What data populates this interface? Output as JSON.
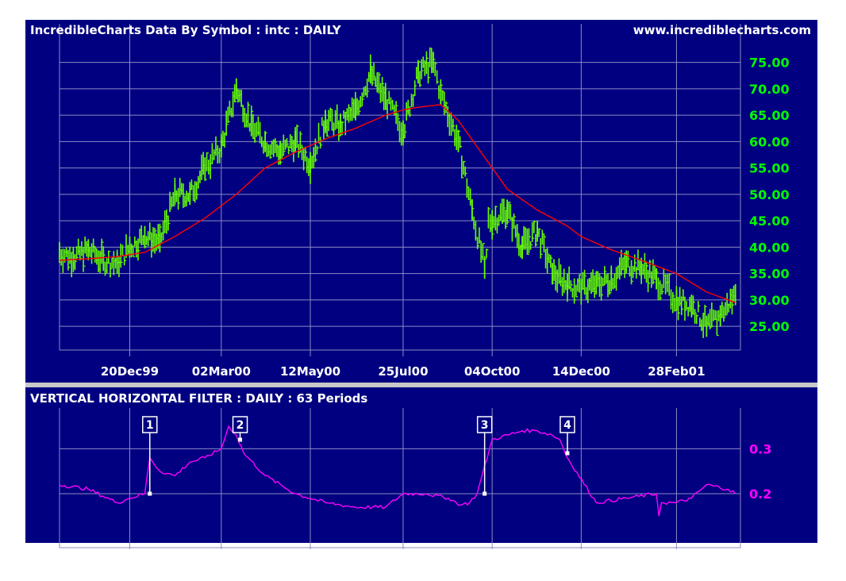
{
  "colors": {
    "background": "#ffffff",
    "panel": "#000080",
    "grid": "#8c8cc6",
    "separator": "#c8c8c8",
    "text": "#ffffff",
    "price_axis": "#00ff00",
    "price_bars": "#66ff00",
    "moving_average": "#ff0000",
    "indicator": "#ff00ff"
  },
  "chart_data": [
    {
      "type": "line",
      "title": "IncredibleCharts Data By Symbol : intc : DAILY",
      "source_label": "www.incrediblecharts.com",
      "x_tick_labels": [
        "20Dec99",
        "02Mar00",
        "12May00",
        "25Jul00",
        "04Oct00",
        "14Dec00",
        "28Feb01"
      ],
      "x_tick_dates": [
        "1999-12-20",
        "2000-03-02",
        "2000-05-12",
        "2000-07-25",
        "2000-10-04",
        "2000-12-14",
        "2001-02-28"
      ],
      "x_range": [
        "1999-10-25",
        "2001-04-20"
      ],
      "y_ticks": [
        25,
        30,
        35,
        40,
        45,
        50,
        55,
        60,
        65,
        70,
        75
      ],
      "y_tick_labels": [
        "25.00",
        "30.00",
        "35.00",
        "40.00",
        "45.00",
        "50.00",
        "55.00",
        "60.00",
        "65.00",
        "70.00",
        "75.00"
      ],
      "ylim": [
        20.5,
        79
      ],
      "grid": true,
      "series": [
        {
          "role": "price-bars",
          "x": [
            "1999-10-25",
            "1999-11-05",
            "1999-11-17",
            "1999-11-29",
            "1999-12-10",
            "1999-12-20",
            "2000-01-01",
            "2000-01-13",
            "2000-01-25",
            "2000-02-06",
            "2000-02-18",
            "2000-03-02",
            "2000-03-14",
            "2000-03-26",
            "2000-04-06",
            "2000-04-18",
            "2000-04-30",
            "2000-05-12",
            "2000-05-24",
            "2000-06-05",
            "2000-06-17",
            "2000-06-29",
            "2000-07-11",
            "2000-07-25",
            "2000-08-06",
            "2000-08-18",
            "2000-08-24",
            "2000-09-07",
            "2000-09-18",
            "2000-09-28",
            "2000-10-04",
            "2000-10-16",
            "2000-10-28",
            "2000-11-09",
            "2000-11-21",
            "2000-12-03",
            "2000-12-14",
            "2000-12-26",
            "2001-01-07",
            "2001-01-19",
            "2001-01-31",
            "2001-02-12",
            "2001-02-28",
            "2001-03-12",
            "2001-03-24",
            "2001-04-04",
            "2001-04-16"
          ],
          "values": [
            39,
            38,
            39.5,
            37.5,
            37,
            40,
            42,
            41,
            50,
            50,
            55,
            59,
            70,
            63,
            60,
            58,
            60,
            56,
            64,
            63,
            66,
            73,
            68,
            62,
            73,
            75,
            69,
            60,
            47,
            36,
            45,
            47,
            40,
            43,
            35,
            33,
            32,
            33,
            34,
            37,
            36,
            34,
            30,
            29,
            25,
            27,
            31
          ]
        },
        {
          "role": "moving-average",
          "x": [
            "1999-10-25",
            "1999-11-17",
            "1999-12-10",
            "2000-01-01",
            "2000-01-25",
            "2000-02-18",
            "2000-03-14",
            "2000-04-06",
            "2000-04-30",
            "2000-05-24",
            "2000-06-17",
            "2000-07-11",
            "2000-07-25",
            "2000-08-06",
            "2000-08-24",
            "2000-09-07",
            "2000-09-28",
            "2000-10-16",
            "2000-11-09",
            "2000-12-03",
            "2000-12-14",
            "2001-01-07",
            "2001-01-31",
            "2001-02-28",
            "2001-03-24",
            "2001-04-16"
          ],
          "values": [
            37.5,
            37.8,
            38.2,
            39,
            42,
            45.5,
            50,
            55,
            58,
            60.5,
            62.5,
            65,
            66,
            66.5,
            67,
            64,
            57,
            51,
            47,
            44,
            42,
            39.5,
            37.5,
            35,
            31.5,
            29.5
          ]
        }
      ]
    },
    {
      "type": "line",
      "title": "VERTICAL HORIZONTAL FILTER : DAILY : 63 Periods",
      "y_ticks": [
        0.2,
        0.3
      ],
      "y_tick_labels": [
        "0.2",
        "0.3"
      ],
      "ylim": [
        0.08,
        0.38
      ],
      "grid": true,
      "series": [
        {
          "role": "vhf",
          "x": [
            "1999-10-25",
            "1999-11-17",
            "1999-12-10",
            "1999-12-20",
            "2000-01-01",
            "2000-01-05",
            "2000-01-13",
            "2000-01-25",
            "2000-02-06",
            "2000-02-18",
            "2000-03-02",
            "2000-03-08",
            "2000-03-14",
            "2000-03-20",
            "2000-04-06",
            "2000-04-30",
            "2000-05-24",
            "2000-06-17",
            "2000-07-11",
            "2000-07-25",
            "2000-08-12",
            "2000-08-30",
            "2000-09-09",
            "2000-09-16",
            "2000-09-22",
            "2000-10-04",
            "2000-10-28",
            "2000-11-09",
            "2000-11-21",
            "2000-11-27",
            "2000-12-03",
            "2000-12-26",
            "2001-01-19",
            "2001-02-12",
            "2001-02-14",
            "2001-02-16",
            "2001-02-28",
            "2001-03-12",
            "2001-03-24",
            "2001-04-10",
            "2001-04-16"
          ],
          "values": [
            0.22,
            0.21,
            0.18,
            0.19,
            0.2,
            0.28,
            0.25,
            0.24,
            0.27,
            0.28,
            0.3,
            0.35,
            0.33,
            0.29,
            0.24,
            0.2,
            0.18,
            0.17,
            0.17,
            0.2,
            0.2,
            0.19,
            0.175,
            0.18,
            0.2,
            0.32,
            0.34,
            0.34,
            0.33,
            0.32,
            0.28,
            0.18,
            0.19,
            0.2,
            0.15,
            0.18,
            0.18,
            0.19,
            0.22,
            0.21,
            0.2
          ]
        }
      ],
      "annotations": [
        {
          "label": "1",
          "x": "2000-01-05",
          "value": 0.2
        },
        {
          "label": "2",
          "x": "2000-03-17",
          "value": 0.32
        },
        {
          "label": "3",
          "x": "2000-09-28",
          "value": 0.2
        },
        {
          "label": "4",
          "x": "2000-12-03",
          "value": 0.29
        }
      ]
    }
  ]
}
